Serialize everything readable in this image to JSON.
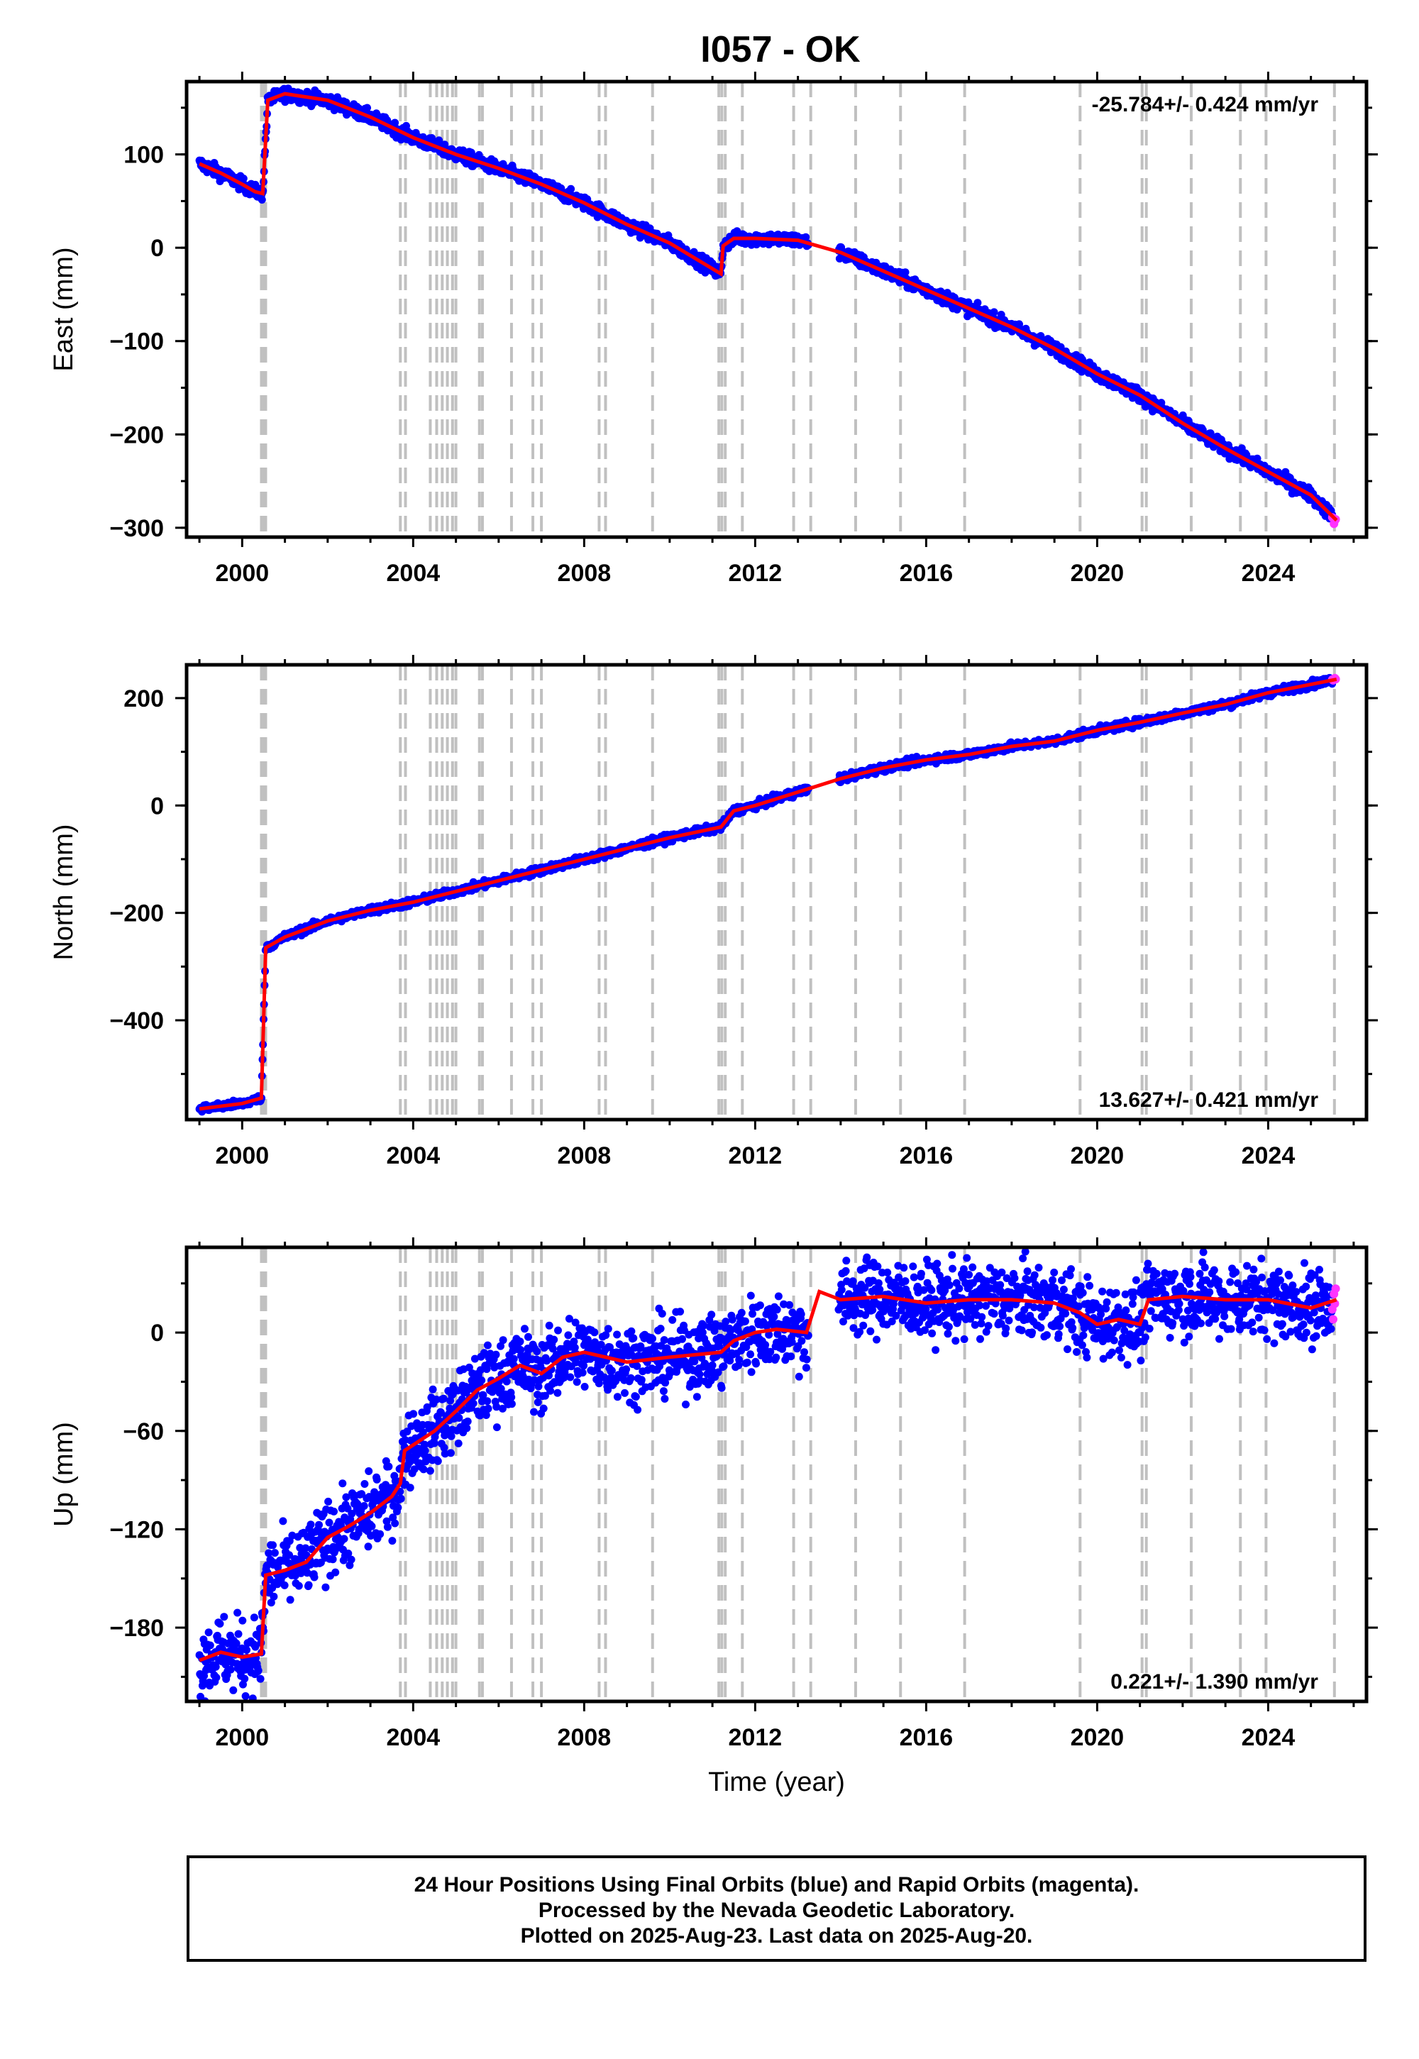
{
  "title": "I057 - OK",
  "colors": {
    "final_orbits": "#0000ff",
    "rapid_orbits": "#ff33ff",
    "model": "#ff0000",
    "event_lines": "#c0c0c0",
    "frame": "#000000"
  },
  "footer": {
    "line1": "24 Hour Positions Using Final Orbits (blue) and Rapid Orbits (magenta).",
    "line2": "Processed by the Nevada Geodetic Laboratory.",
    "line3": "Plotted on 2025-Aug-23. Last data on 2025-Aug-20."
  },
  "chart_data": [
    {
      "type": "scatter",
      "name": "east",
      "ylabel": "East (mm)",
      "xlabel": "",
      "rate_label": "-25.784+/- 0.424 mm/yr",
      "xlim": [
        1998.7,
        2026.3
      ],
      "ylim": [
        -310,
        178
      ],
      "xticks": [
        2000,
        2004,
        2008,
        2012,
        2016,
        2020,
        2024
      ],
      "yticks": [
        -300,
        -200,
        -100,
        0,
        100
      ],
      "ytick_labels": [
        "−300",
        "−200",
        "−100",
        "0",
        "100"
      ],
      "event_lines": [
        2000.45,
        2000.5,
        2000.55,
        2003.7,
        2003.82,
        2004.4,
        2004.55,
        2004.68,
        2004.8,
        2004.92,
        2005.0,
        2005.55,
        2005.62,
        2006.3,
        2006.8,
        2007.0,
        2008.35,
        2008.5,
        2009.6,
        2011.15,
        2011.22,
        2011.3,
        2011.7,
        2012.9,
        2013.3,
        2014.35,
        2015.4,
        2016.9,
        2019.6,
        2021.05,
        2021.15,
        2022.2,
        2023.35,
        2023.95,
        2025.55
      ],
      "model": {
        "x": [
          1999.0,
          1999.5,
          2000.0,
          2000.3,
          2000.48,
          2000.6,
          2001.0,
          2002.0,
          2003.0,
          2004.0,
          2005.0,
          2006.0,
          2007.0,
          2008.0,
          2009.0,
          2010.0,
          2011.2,
          2011.25,
          2011.5,
          2012.0,
          2013.0,
          2014.0,
          2015.0,
          2016.0,
          2017.0,
          2018.0,
          2019.0,
          2020.0,
          2021.0,
          2022.0,
          2023.0,
          2024.0,
          2025.0,
          2025.6
        ],
        "y": [
          90,
          80,
          68,
          60,
          58,
          158,
          165,
          158,
          140,
          118,
          100,
          85,
          68,
          48,
          25,
          5,
          -28,
          2,
          10,
          10,
          8,
          -5,
          -25,
          -45,
          -65,
          -85,
          -108,
          -135,
          -158,
          -188,
          -215,
          -240,
          -265,
          -292
        ],
        "scatter": 5
      }
    },
    {
      "type": "scatter",
      "name": "north",
      "ylabel": "North (mm)",
      "xlabel": "",
      "rate_label": "13.627+/- 0.421 mm/yr",
      "xlim": [
        1998.7,
        2026.3
      ],
      "ylim": [
        -585,
        262
      ],
      "xticks": [
        2000,
        2004,
        2008,
        2012,
        2016,
        2020,
        2024
      ],
      "yticks": [
        -400,
        -200,
        0,
        200
      ],
      "ytick_labels": [
        "−400",
        "−200",
        "0",
        "200"
      ],
      "event_lines": [
        2000.45,
        2000.5,
        2000.55,
        2003.7,
        2003.82,
        2004.4,
        2004.55,
        2004.68,
        2004.8,
        2004.92,
        2005.0,
        2005.55,
        2005.62,
        2006.3,
        2006.8,
        2007.0,
        2008.35,
        2008.5,
        2009.6,
        2011.15,
        2011.22,
        2011.3,
        2011.7,
        2012.9,
        2013.3,
        2014.35,
        2015.4,
        2016.9,
        2019.6,
        2021.05,
        2021.15,
        2022.2,
        2023.35,
        2023.95,
        2025.55
      ],
      "model": {
        "x": [
          1999.0,
          2000.0,
          2000.45,
          2000.55,
          2001.0,
          2002.0,
          2003.0,
          2004.0,
          2005.0,
          2006.0,
          2007.0,
          2008.0,
          2009.0,
          2010.0,
          2011.2,
          2011.5,
          2012.0,
          2013.0,
          2014.0,
          2015.0,
          2016.0,
          2017.0,
          2018.0,
          2019.0,
          2020.0,
          2021.0,
          2022.0,
          2023.0,
          2024.0,
          2025.6
        ],
        "y": [
          -565,
          -555,
          -545,
          -265,
          -245,
          -215,
          -195,
          -180,
          -160,
          -140,
          -120,
          -100,
          -80,
          -60,
          -40,
          -10,
          0,
          25,
          50,
          70,
          85,
          95,
          110,
          120,
          140,
          155,
          172,
          188,
          210,
          235
        ],
        "scatter": 5
      }
    },
    {
      "type": "scatter",
      "name": "up",
      "ylabel": "Up (mm)",
      "xlabel": "Time (year)",
      "rate_label": "0.221+/- 1.390 mm/yr",
      "xlim": [
        1998.7,
        2026.3
      ],
      "ylim": [
        -225,
        52
      ],
      "xticks": [
        2000,
        2004,
        2008,
        2012,
        2016,
        2020,
        2024
      ],
      "yticks": [
        -180,
        -120,
        -60,
        0
      ],
      "ytick_labels": [
        "−180",
        "−120",
        "−60",
        "0"
      ],
      "event_lines": [
        2000.45,
        2000.5,
        2000.55,
        2003.7,
        2003.82,
        2004.4,
        2004.55,
        2004.68,
        2004.8,
        2004.92,
        2005.0,
        2005.55,
        2005.62,
        2006.3,
        2006.8,
        2007.0,
        2008.35,
        2008.5,
        2009.6,
        2011.15,
        2011.22,
        2011.3,
        2011.7,
        2012.9,
        2013.3,
        2014.35,
        2015.4,
        2016.9,
        2019.6,
        2021.05,
        2021.15,
        2022.2,
        2023.35,
        2023.95,
        2025.55
      ],
      "model": {
        "x": [
          1999.0,
          1999.5,
          2000.0,
          2000.45,
          2000.55,
          2001.0,
          2001.5,
          2002.0,
          2002.5,
          2003.0,
          2003.5,
          2003.7,
          2003.8,
          2004.5,
          2005.0,
          2005.5,
          2006.0,
          2006.5,
          2007.0,
          2007.5,
          2008.0,
          2009.0,
          2010.0,
          2011.2,
          2011.5,
          2012.0,
          2012.5,
          2013.2,
          2013.5,
          2014.0,
          2015.0,
          2016.0,
          2017.0,
          2018.0,
          2019.0,
          2019.6,
          2020.0,
          2020.5,
          2021.0,
          2021.2,
          2022.0,
          2023.0,
          2024.0,
          2025.0,
          2025.6
        ],
        "y": [
          -200,
          -195,
          -198,
          -196,
          -148,
          -145,
          -140,
          -125,
          -118,
          -110,
          -100,
          -92,
          -72,
          -60,
          -48,
          -35,
          -28,
          -20,
          -25,
          -15,
          -12,
          -18,
          -15,
          -12,
          -5,
          0,
          2,
          0,
          25,
          20,
          22,
          18,
          20,
          20,
          18,
          12,
          5,
          8,
          5,
          20,
          22,
          20,
          20,
          15,
          20
        ],
        "scatter": 16
      }
    }
  ]
}
